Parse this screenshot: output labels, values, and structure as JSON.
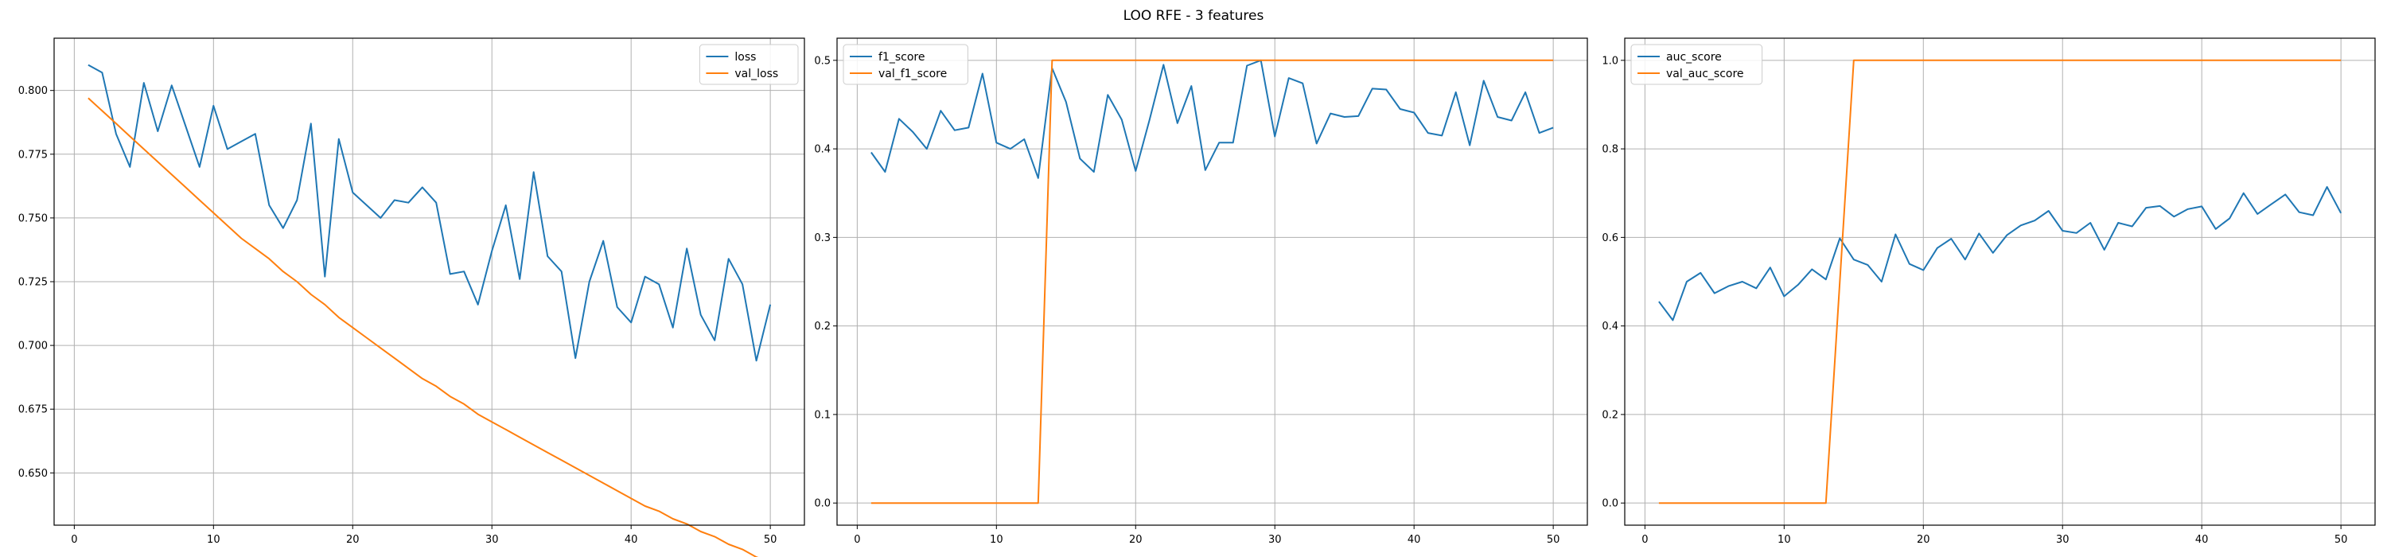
{
  "suptitle": "LOO RFE - 3 features",
  "colors": {
    "train": "#1f77b4",
    "val": "#ff7f0e",
    "grid": "#b0b0b0"
  },
  "chart_data": [
    {
      "type": "line",
      "title": "",
      "xlabel": "",
      "ylabel": "",
      "xlim": [
        -1.45,
        52.45
      ],
      "ylim": [
        0.6295,
        0.8205
      ],
      "xticks": [
        0,
        10,
        20,
        30,
        40,
        50
      ],
      "yticks": [
        0.65,
        0.675,
        0.7,
        0.725,
        0.75,
        0.775,
        0.8
      ],
      "ytick_labels": [
        "0.650",
        "0.675",
        "0.700",
        "0.725",
        "0.750",
        "0.775",
        "0.800"
      ],
      "grid": true,
      "legend": "top-right",
      "x": [
        1,
        2,
        3,
        4,
        5,
        6,
        7,
        8,
        9,
        10,
        11,
        12,
        13,
        14,
        15,
        16,
        17,
        18,
        19,
        20,
        21,
        22,
        23,
        24,
        25,
        26,
        27,
        28,
        29,
        30,
        31,
        32,
        33,
        34,
        35,
        36,
        37,
        38,
        39,
        40,
        41,
        42,
        43,
        44,
        45,
        46,
        47,
        48,
        49,
        50
      ],
      "series": [
        {
          "name": "loss",
          "values": [
            0.81,
            0.807,
            0.783,
            0.77,
            0.803,
            0.784,
            0.802,
            0.786,
            0.77,
            0.794,
            0.777,
            0.78,
            0.783,
            0.755,
            0.746,
            0.757,
            0.787,
            0.727,
            0.781,
            0.76,
            0.755,
            0.75,
            0.757,
            0.756,
            0.762,
            0.756,
            0.728,
            0.729,
            0.716,
            0.737,
            0.755,
            0.726,
            0.768,
            0.735,
            0.729,
            0.695,
            0.725,
            0.741,
            0.715,
            0.709,
            0.727,
            0.724,
            0.707,
            0.738,
            0.712,
            0.702,
            0.734,
            0.724,
            0.694,
            0.716
          ]
        },
        {
          "name": "val_loss",
          "values": [
            0.797,
            0.792,
            0.787,
            0.782,
            0.777,
            0.772,
            0.767,
            0.762,
            0.757,
            0.752,
            0.747,
            0.742,
            0.738,
            0.734,
            0.729,
            0.725,
            0.72,
            0.716,
            0.711,
            0.707,
            0.703,
            0.699,
            0.695,
            0.691,
            0.687,
            0.684,
            0.68,
            0.677,
            0.673,
            0.67,
            0.667,
            0.664,
            0.661,
            0.658,
            0.655,
            0.652,
            0.649,
            0.646,
            0.643,
            0.64,
            0.637,
            0.635,
            0.632,
            0.63,
            0.627,
            0.625,
            0.622,
            0.62,
            0.617,
            0.615
          ]
        }
      ]
    },
    {
      "type": "line",
      "title": "",
      "xlabel": "",
      "ylabel": "",
      "xlim": [
        -1.45,
        52.45
      ],
      "ylim": [
        -0.025,
        0.525
      ],
      "xticks": [
        0,
        10,
        20,
        30,
        40,
        50
      ],
      "yticks": [
        0.0,
        0.1,
        0.2,
        0.3,
        0.4,
        0.5
      ],
      "ytick_labels": [
        "0.0",
        "0.1",
        "0.2",
        "0.3",
        "0.4",
        "0.5"
      ],
      "grid": true,
      "legend": "top-left",
      "x": [
        1,
        2,
        3,
        4,
        5,
        6,
        7,
        8,
        9,
        10,
        11,
        12,
        13,
        14,
        15,
        16,
        17,
        18,
        19,
        20,
        21,
        22,
        23,
        24,
        25,
        26,
        27,
        28,
        29,
        30,
        31,
        32,
        33,
        34,
        35,
        36,
        37,
        38,
        39,
        40,
        41,
        42,
        43,
        44,
        45,
        46,
        47,
        48,
        49,
        50
      ],
      "series": [
        {
          "name": "f1_score",
          "values": [
            0.396,
            0.374,
            0.434,
            0.419,
            0.4,
            0.443,
            0.421,
            0.424,
            0.485,
            0.407,
            0.4,
            0.411,
            0.367,
            0.491,
            0.453,
            0.389,
            0.374,
            0.461,
            0.433,
            0.375,
            0.433,
            0.495,
            0.429,
            0.471,
            0.376,
            0.407,
            0.407,
            0.494,
            0.5,
            0.414,
            0.48,
            0.474,
            0.406,
            0.44,
            0.436,
            0.437,
            0.468,
            0.467,
            0.445,
            0.441,
            0.418,
            0.415,
            0.464,
            0.404,
            0.477,
            0.436,
            0.432,
            0.464,
            0.418,
            0.424
          ]
        },
        {
          "name": "val_f1_score",
          "values": [
            0,
            0,
            0,
            0,
            0,
            0,
            0,
            0,
            0,
            0,
            0,
            0,
            0,
            0.5,
            0.5,
            0.5,
            0.5,
            0.5,
            0.5,
            0.5,
            0.5,
            0.5,
            0.5,
            0.5,
            0.5,
            0.5,
            0.5,
            0.5,
            0.5,
            0.5,
            0.5,
            0.5,
            0.5,
            0.5,
            0.5,
            0.5,
            0.5,
            0.5,
            0.5,
            0.5,
            0.5,
            0.5,
            0.5,
            0.5,
            0.5,
            0.5,
            0.5,
            0.5,
            0.5,
            0.5
          ]
        }
      ]
    },
    {
      "type": "line",
      "title": "",
      "xlabel": "",
      "ylabel": "",
      "xlim": [
        -1.45,
        52.45
      ],
      "ylim": [
        -0.05,
        1.05
      ],
      "xticks": [
        0,
        10,
        20,
        30,
        40,
        50
      ],
      "yticks": [
        0.0,
        0.2,
        0.4,
        0.6,
        0.8,
        1.0
      ],
      "ytick_labels": [
        "0.0",
        "0.2",
        "0.4",
        "0.6",
        "0.8",
        "1.0"
      ],
      "grid": true,
      "legend": "top-left",
      "x": [
        1,
        2,
        3,
        4,
        5,
        6,
        7,
        8,
        9,
        10,
        11,
        12,
        13,
        14,
        15,
        16,
        17,
        18,
        19,
        20,
        21,
        22,
        23,
        24,
        25,
        26,
        27,
        28,
        29,
        30,
        31,
        32,
        33,
        34,
        35,
        36,
        37,
        38,
        39,
        40,
        41,
        42,
        43,
        44,
        45,
        46,
        47,
        48,
        49,
        50
      ],
      "series": [
        {
          "name": "auc_score",
          "values": [
            0.455,
            0.413,
            0.5,
            0.52,
            0.474,
            0.49,
            0.5,
            0.485,
            0.532,
            0.467,
            0.493,
            0.528,
            0.505,
            0.598,
            0.55,
            0.538,
            0.5,
            0.607,
            0.54,
            0.526,
            0.576,
            0.597,
            0.55,
            0.609,
            0.565,
            0.605,
            0.627,
            0.638,
            0.66,
            0.615,
            0.61,
            0.633,
            0.572,
            0.633,
            0.625,
            0.667,
            0.671,
            0.647,
            0.664,
            0.67,
            0.619,
            0.643,
            0.7,
            0.653,
            0.675,
            0.697,
            0.657,
            0.65,
            0.714,
            0.655
          ]
        },
        {
          "name": "val_auc_score",
          "values": [
            0,
            0,
            0,
            0,
            0,
            0,
            0,
            0,
            0,
            0,
            0,
            0,
            0,
            0.5,
            1,
            1,
            1,
            1,
            1,
            1,
            1,
            1,
            1,
            1,
            1,
            1,
            1,
            1,
            1,
            1,
            1,
            1,
            1,
            1,
            1,
            1,
            1,
            1,
            1,
            1,
            1,
            1,
            1,
            1,
            1,
            1,
            1,
            1,
            1,
            1
          ]
        }
      ]
    }
  ]
}
